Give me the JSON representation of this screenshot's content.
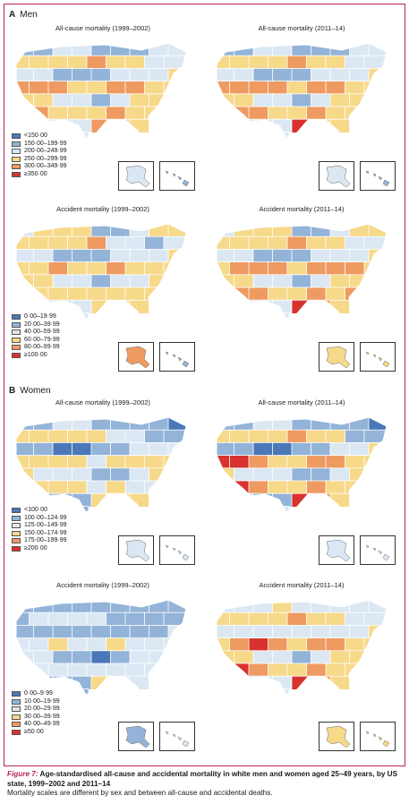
{
  "colors": {
    "frame": "#b8235a",
    "state_stroke": "#ffffff",
    "scale": [
      "#4a78b8",
      "#93b4d8",
      "#dbe8f3",
      "#f7d98a",
      "#ef9a60",
      "#d9312e"
    ]
  },
  "sections": [
    {
      "letter": "A",
      "label": "Men",
      "panels": [
        {
          "title": "All-cause mortality (1999–2002)",
          "legend": [
            "<150·00",
            "150·00–199·99",
            "200·00–249·99",
            "250·00–299·99",
            "300·00–349·99",
            "≥350·00"
          ],
          "pair": [
            {
              "map": [
                1,
                1,
                2,
                2,
                1,
                1,
                1,
                2,
                2,
                3,
                3,
                3,
                3,
                4,
                3,
                3,
                2,
                2,
                2,
                2,
                1,
                1,
                1,
                2,
                2,
                2,
                3,
                4,
                4,
                4,
                3,
                3,
                4,
                4,
                3,
                3,
                3,
                3,
                2,
                2,
                1,
                2,
                3,
                3,
                3,
                2,
                4,
                3,
                3,
                3,
                4,
                3,
                3,
                3,
                2,
                2,
                2,
                2,
                4,
                3,
                3,
                3,
                3,
                2,
                2,
                2,
                2
              ],
              "ak": 2,
              "hi": 1
            },
            {
              "title": "All-cause mortality (2011–14)",
              "map": [
                1,
                1,
                2,
                2,
                1,
                1,
                1,
                2,
                2,
                3,
                3,
                3,
                3,
                4,
                3,
                3,
                2,
                2,
                2,
                2,
                1,
                1,
                1,
                2,
                2,
                2,
                3,
                4,
                4,
                4,
                4,
                3,
                4,
                4,
                3,
                3,
                3,
                3,
                2,
                2,
                1,
                2,
                3,
                3,
                4,
                2,
                4,
                4,
                3,
                3,
                4,
                3,
                3,
                3,
                2,
                2,
                2,
                2,
                5,
                3,
                3,
                3,
                3,
                2,
                2,
                2,
                2
              ],
              "ak": 2,
              "hi": 1
            }
          ]
        },
        {
          "title": "Accident mortality (1999–2002)",
          "legend": [
            "0·00–19·99",
            "20·00–39·99",
            "40·00–59·99",
            "60·00–79·99",
            "80·00–99·99",
            "≥100·00"
          ],
          "pair": [
            {
              "map": [
                2,
                3,
                3,
                3,
                1,
                1,
                2,
                3,
                3,
                3,
                3,
                3,
                3,
                4,
                2,
                2,
                1,
                2,
                2,
                2,
                1,
                1,
                1,
                2,
                2,
                2,
                3,
                3,
                3,
                4,
                3,
                3,
                4,
                3,
                3,
                3,
                3,
                3,
                2,
                2,
                1,
                2,
                2,
                3,
                3,
                2,
                3,
                3,
                3,
                3,
                3,
                3,
                3,
                3,
                2,
                2,
                2,
                2,
                3,
                3,
                3,
                3,
                3,
                2,
                2,
                2,
                2
              ],
              "ak": 4,
              "hi": 1
            },
            {
              "title": "Accident mortality (2011–14)",
              "map": [
                2,
                3,
                3,
                3,
                1,
                1,
                2,
                3,
                3,
                3,
                3,
                3,
                3,
                4,
                3,
                3,
                2,
                2,
                2,
                2,
                1,
                1,
                1,
                2,
                2,
                2,
                3,
                3,
                4,
                4,
                4,
                3,
                4,
                4,
                4,
                3,
                3,
                3,
                2,
                2,
                1,
                2,
                3,
                3,
                4,
                2,
                4,
                4,
                3,
                3,
                4,
                3,
                4,
                3,
                2,
                2,
                2,
                2,
                5,
                4,
                3,
                3,
                3,
                2,
                2,
                2,
                2
              ],
              "ak": 3,
              "hi": 3
            }
          ]
        }
      ]
    },
    {
      "letter": "B",
      "label": "Women",
      "panels": [
        {
          "title": "All-cause mortality (1999–2002)",
          "legend": [
            "<100·00",
            "100·00–124·99",
            "125·00–149·99",
            "150·00–174·99",
            "175·00–199·99",
            "≥200·00"
          ],
          "pair": [
            {
              "map": [
                1,
                1,
                2,
                2,
                1,
                1,
                1,
                1,
                0,
                3,
                3,
                3,
                3,
                3,
                2,
                2,
                1,
                1,
                1,
                1,
                0,
                0,
                1,
                1,
                2,
                2,
                2,
                3,
                3,
                3,
                3,
                2,
                3,
                3,
                3,
                3,
                3,
                2,
                2,
                2,
                1,
                1,
                2,
                3,
                3,
                2,
                3,
                3,
                3,
                2,
                3,
                2,
                2,
                2,
                1,
                1,
                1,
                1,
                3,
                3,
                3,
                2,
                2,
                1,
                1,
                1,
                1
              ],
              "ak": 2,
              "hi": 2
            },
            {
              "title": "All-cause mortality (2011–14)",
              "map": [
                1,
                1,
                2,
                2,
                1,
                1,
                1,
                1,
                0,
                3,
                3,
                3,
                3,
                4,
                3,
                3,
                1,
                1,
                1,
                1,
                0,
                0,
                1,
                1,
                2,
                2,
                3,
                5,
                5,
                4,
                3,
                3,
                4,
                4,
                3,
                3,
                3,
                2,
                2,
                2,
                1,
                1,
                2,
                3,
                4,
                2,
                5,
                4,
                3,
                3,
                4,
                3,
                3,
                3,
                2,
                2,
                1,
                1,
                5,
                4,
                3,
                3,
                3,
                2,
                2,
                2,
                2
              ],
              "ak": 2,
              "hi": 2
            }
          ]
        },
        {
          "title": "Accident mortality (1999–2002)",
          "legend": [
            "0·00–9·99",
            "10·00–19·99",
            "20·00–29·99",
            "30·00–39·99",
            "40·00–49·99",
            "≥50·00"
          ],
          "pair": [
            {
              "map": [
                1,
                1,
                1,
                1,
                1,
                1,
                1,
                1,
                1,
                1,
                2,
                2,
                2,
                2,
                1,
                1,
                1,
                1,
                1,
                1,
                1,
                1,
                1,
                1,
                1,
                1,
                2,
                2,
                2,
                3,
                2,
                2,
                3,
                2,
                2,
                2,
                2,
                2,
                1,
                1,
                0,
                1,
                2,
                2,
                2,
                1,
                2,
                2,
                2,
                2,
                2,
                2,
                2,
                2,
                1,
                1,
                1,
                1,
                3,
                2,
                2,
                2,
                2,
                1,
                1,
                1,
                1
              ],
              "ak": 1,
              "hi": 2
            },
            {
              "title": "Accident mortality (2011–14)",
              "map": [
                2,
                2,
                2,
                3,
                2,
                2,
                2,
                2,
                2,
                3,
                3,
                3,
                3,
                4,
                3,
                3,
                2,
                2,
                2,
                2,
                2,
                2,
                2,
                2,
                2,
                2,
                3,
                3,
                4,
                5,
                4,
                3,
                4,
                4,
                3,
                3,
                3,
                3,
                2,
                2,
                1,
                2,
                3,
                3,
                4,
                2,
                5,
                4,
                3,
                3,
                4,
                3,
                3,
                3,
                2,
                2,
                2,
                2,
                5,
                4,
                3,
                3,
                3,
                2,
                2,
                2,
                2
              ],
              "ak": 3,
              "hi": 3
            }
          ]
        }
      ]
    }
  ],
  "caption": {
    "figure": "Figure 7:",
    "title": " Age-standardised all-cause and accidental mortality in white men and women aged 25–49 years, by US state, 1999–2002 and 2011–14",
    "note": "Mortality scales are different by sex and between all-cause and accidental deaths."
  }
}
